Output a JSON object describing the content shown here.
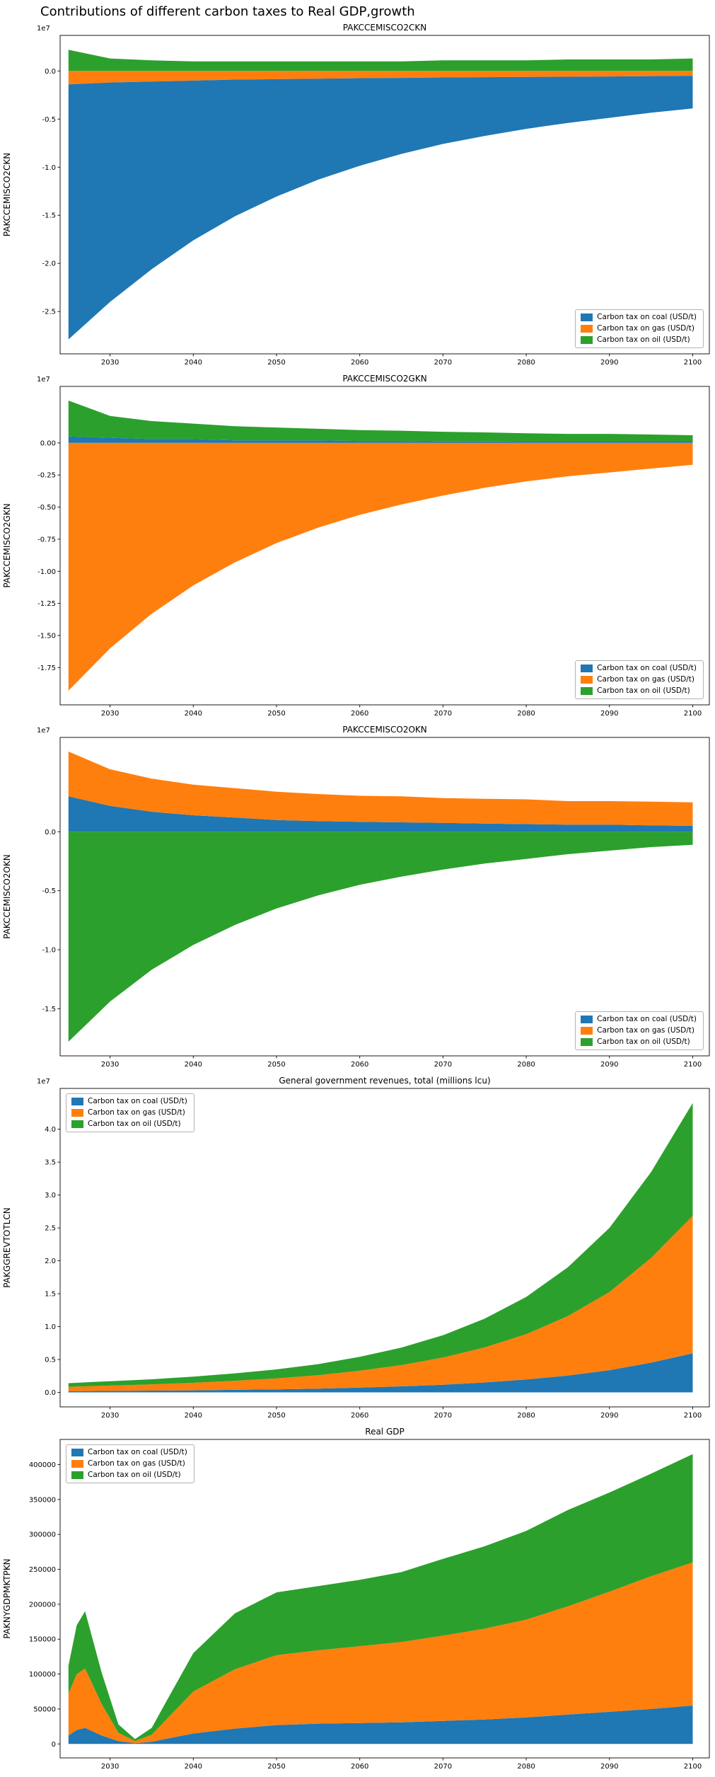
{
  "figure_title": "Contributions of different carbon taxes to Real GDP,growth",
  "colors": {
    "coal": "#1f77b4",
    "gas": "#ff7f0e",
    "oil": "#2ca02c"
  },
  "legend_labels": [
    {
      "key": "coal",
      "label": "Carbon tax on coal (USD/t)"
    },
    {
      "key": "gas",
      "label": "Carbon tax on gas (USD/t)"
    },
    {
      "key": "oil",
      "label": "Carbon tax on oil (USD/t)"
    }
  ],
  "xticks": {
    "values": [
      2030,
      2040,
      2050,
      2060,
      2070,
      2080,
      2090,
      2100
    ],
    "labels": [
      "2030",
      "2040",
      "2050",
      "2060",
      "2070",
      "2080",
      "2090",
      "2100"
    ]
  },
  "chart_data": [
    {
      "type": "area",
      "stacked": true,
      "title": "PAKCCEMISCO2CKN",
      "ylabel": "PAKCCEMISCO2CKN",
      "offset_text": "1e7",
      "unit_scale": "1e7",
      "legend_pos": "lower right",
      "xlim": [
        2024,
        2102
      ],
      "ylim": [
        -2.94,
        0.37
      ],
      "yticks": {
        "values": [
          0.0,
          -0.5,
          -1.0,
          -1.5,
          -2.0,
          -2.5
        ],
        "labels": [
          "0.0",
          "-0.5",
          "-1.0",
          "-1.5",
          "-2.0",
          "-2.5"
        ]
      },
      "x": [
        2025,
        2030,
        2035,
        2040,
        2045,
        2050,
        2055,
        2060,
        2065,
        2070,
        2075,
        2080,
        2085,
        2090,
        2095,
        2100
      ],
      "series": [
        {
          "key": "gas",
          "values": [
            -0.14,
            -0.12,
            -0.11,
            -0.1,
            -0.09,
            -0.085,
            -0.08,
            -0.075,
            -0.072,
            -0.068,
            -0.065,
            -0.062,
            -0.06,
            -0.057,
            -0.054,
            -0.05
          ]
        },
        {
          "key": "coal",
          "values": [
            -2.65,
            -2.28,
            -1.95,
            -1.66,
            -1.42,
            -1.22,
            -1.05,
            -0.91,
            -0.79,
            -0.69,
            -0.61,
            -0.54,
            -0.48,
            -0.43,
            -0.38,
            -0.34
          ]
        },
        {
          "key": "oil",
          "values": [
            0.22,
            0.13,
            0.11,
            0.1,
            0.1,
            0.1,
            0.1,
            0.1,
            0.1,
            0.11,
            0.11,
            0.11,
            0.12,
            0.12,
            0.12,
            0.13
          ]
        }
      ]
    },
    {
      "type": "area",
      "stacked": true,
      "title": "PAKCCEMISCO2GKN",
      "ylabel": "PAKCCEMISCO2GKN",
      "offset_text": "1e7",
      "unit_scale": "1e7",
      "legend_pos": "lower right",
      "xlim": [
        2024,
        2102
      ],
      "ylim": [
        -2.04,
        0.44
      ],
      "yticks": {
        "values": [
          0.0,
          -0.25,
          -0.5,
          -0.75,
          -1.0,
          -1.25,
          -1.5,
          -1.75
        ],
        "labels": [
          "0.00",
          "-0.25",
          "-0.50",
          "-0.75",
          "-1.00",
          "-1.25",
          "-1.50",
          "-1.75"
        ]
      },
      "x": [
        2025,
        2030,
        2035,
        2040,
        2045,
        2050,
        2055,
        2060,
        2065,
        2070,
        2075,
        2080,
        2085,
        2090,
        2095,
        2100
      ],
      "series": [
        {
          "key": "gas",
          "values": [
            -1.93,
            -1.6,
            -1.33,
            -1.11,
            -0.93,
            -0.78,
            -0.66,
            -0.56,
            -0.48,
            -0.41,
            -0.35,
            -0.3,
            -0.26,
            -0.23,
            -0.2,
            -0.17
          ]
        },
        {
          "key": "coal",
          "values": [
            0.05,
            0.04,
            0.03,
            0.03,
            0.02,
            0.02,
            0.02,
            0.015,
            0.015,
            0.012,
            0.012,
            0.01,
            0.01,
            0.01,
            0.01,
            0.01
          ]
        },
        {
          "key": "oil",
          "values": [
            0.28,
            0.17,
            0.14,
            0.12,
            0.11,
            0.1,
            0.09,
            0.085,
            0.08,
            0.075,
            0.07,
            0.065,
            0.06,
            0.06,
            0.055,
            0.05
          ]
        }
      ]
    },
    {
      "type": "area",
      "stacked": true,
      "title": "PAKCCEMISCO2OKN",
      "ylabel": "PAKCCEMISCO2OKN",
      "offset_text": "1e7",
      "unit_scale": "1e7",
      "legend_pos": "lower right",
      "xlim": [
        2024,
        2102
      ],
      "ylim": [
        -1.9,
        0.8
      ],
      "yticks": {
        "values": [
          0.0,
          -0.5,
          -1.0,
          -1.5
        ],
        "labels": [
          "0.0",
          "-0.5",
          "-1.0",
          "-1.5"
        ]
      },
      "x": [
        2025,
        2030,
        2035,
        2040,
        2045,
        2050,
        2055,
        2060,
        2065,
        2070,
        2075,
        2080,
        2085,
        2090,
        2095,
        2100
      ],
      "series": [
        {
          "key": "oil",
          "values": [
            -1.78,
            -1.44,
            -1.17,
            -0.96,
            -0.79,
            -0.65,
            -0.54,
            -0.45,
            -0.38,
            -0.32,
            -0.27,
            -0.23,
            -0.19,
            -0.16,
            -0.13,
            -0.11
          ]
        },
        {
          "key": "coal",
          "values": [
            0.3,
            0.22,
            0.17,
            0.14,
            0.12,
            0.1,
            0.09,
            0.085,
            0.08,
            0.075,
            0.07,
            0.065,
            0.06,
            0.06,
            0.055,
            0.05
          ]
        },
        {
          "key": "gas",
          "values": [
            0.38,
            0.31,
            0.28,
            0.26,
            0.25,
            0.24,
            0.23,
            0.22,
            0.22,
            0.21,
            0.21,
            0.21,
            0.2,
            0.2,
            0.2,
            0.2
          ]
        }
      ]
    },
    {
      "type": "area",
      "stacked": true,
      "title": "General government revenues, total (millions lcu)",
      "ylabel": "PAKGGREVTOTLCN",
      "offset_text": "1e7",
      "unit_scale": "1e7",
      "legend_pos": "upper left",
      "xlim": [
        2024,
        2102
      ],
      "ylim": [
        -0.22,
        4.62
      ],
      "yticks": {
        "values": [
          0.0,
          0.5,
          1.0,
          1.5,
          2.0,
          2.5,
          3.0,
          3.5,
          4.0
        ],
        "labels": [
          "0.0",
          "0.5",
          "1.0",
          "1.5",
          "2.0",
          "2.5",
          "3.0",
          "3.5",
          "4.0"
        ]
      },
      "x": [
        2025,
        2030,
        2035,
        2040,
        2045,
        2050,
        2055,
        2060,
        2065,
        2070,
        2075,
        2080,
        2085,
        2090,
        2095,
        2100
      ],
      "series": [
        {
          "key": "coal",
          "values": [
            0.019,
            0.023,
            0.027,
            0.032,
            0.039,
            0.047,
            0.058,
            0.073,
            0.092,
            0.117,
            0.151,
            0.196,
            0.257,
            0.338,
            0.452,
            0.594
          ]
        },
        {
          "key": "gas",
          "values": [
            0.066,
            0.081,
            0.095,
            0.114,
            0.138,
            0.166,
            0.204,
            0.257,
            0.323,
            0.413,
            0.532,
            0.689,
            0.903,
            1.188,
            1.591,
            2.09
          ]
        },
        {
          "key": "oil",
          "values": [
            0.055,
            0.066,
            0.078,
            0.094,
            0.113,
            0.137,
            0.168,
            0.211,
            0.265,
            0.339,
            0.437,
            0.566,
            0.741,
            0.975,
            1.306,
            1.716
          ]
        }
      ]
    },
    {
      "type": "area",
      "stacked": true,
      "title": "Real GDP",
      "ylabel": "PAKNYGDPMKTPKN",
      "legend_pos": "upper left",
      "xlim": [
        2024,
        2102
      ],
      "ylim": [
        -20000,
        436000
      ],
      "yticks": {
        "values": [
          0,
          50000,
          100000,
          150000,
          200000,
          250000,
          300000,
          350000,
          400000
        ],
        "labels": [
          "0",
          "50000",
          "100000",
          "150000",
          "200000",
          "250000",
          "300000",
          "350000",
          "400000"
        ]
      },
      "x": [
        2025,
        2026,
        2027,
        2029,
        2031,
        2033,
        2035,
        2037,
        2040,
        2045,
        2050,
        2055,
        2060,
        2065,
        2070,
        2075,
        2080,
        2085,
        2090,
        2095,
        2100
      ],
      "series": [
        {
          "key": "coal",
          "values": [
            12000,
            20000,
            23000,
            12000,
            4000,
            1000,
            3000,
            8000,
            15000,
            22000,
            27000,
            29000,
            30000,
            31000,
            33000,
            35000,
            38000,
            42000,
            46000,
            50000,
            55000
          ]
        },
        {
          "key": "gas",
          "values": [
            60000,
            80000,
            85000,
            45000,
            12000,
            3000,
            10000,
            30000,
            60000,
            85000,
            100000,
            105000,
            110000,
            115000,
            122000,
            130000,
            140000,
            155000,
            172000,
            190000,
            205000
          ]
        },
        {
          "key": "oil",
          "values": [
            40000,
            70000,
            82000,
            45000,
            12000,
            3000,
            10000,
            28000,
            55000,
            80000,
            90000,
            92000,
            95000,
            100000,
            110000,
            118000,
            127000,
            138000,
            142000,
            147000,
            155000
          ]
        }
      ]
    }
  ]
}
